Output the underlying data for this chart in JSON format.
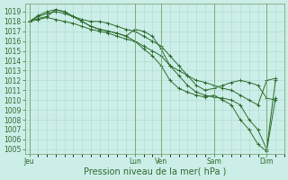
{
  "background_color": "#cceee8",
  "grid_color": "#aad8d0",
  "line_color": "#2d6b2d",
  "marker_color": "#2d6b2d",
  "xlabel_text": "Pression niveau de la mer( hPa )",
  "ylim": [
    1004.5,
    1019.8
  ],
  "yticks": [
    1005,
    1006,
    1007,
    1008,
    1009,
    1010,
    1011,
    1012,
    1013,
    1014,
    1015,
    1016,
    1017,
    1018,
    1019
  ],
  "xtick_labels": [
    "Jeu",
    "Lun",
    "Ven",
    "Sam",
    "Dim"
  ],
  "xtick_positions": [
    0,
    12,
    15,
    21,
    27
  ],
  "xlim": [
    -0.5,
    29
  ],
  "num_xgrid": 29,
  "series": [
    [
      1018.0,
      1018.5,
      1018.8,
      1019.0,
      1018.8,
      1018.5,
      1018.2,
      1018.0,
      1018.0,
      1017.8,
      1017.5,
      1017.2,
      1017.0,
      1016.5,
      1016.0,
      1015.5,
      1014.5,
      1013.5,
      1012.5,
      1011.5,
      1011.0,
      1011.2,
      1011.5,
      1011.8,
      1012.0,
      1011.8,
      1011.5,
      1010.2,
      1010.0
    ],
    [
      1018.0,
      1018.6,
      1019.0,
      1019.2,
      1019.0,
      1018.5,
      1018.0,
      1017.5,
      1017.2,
      1017.0,
      1016.8,
      1016.5,
      1016.0,
      1015.2,
      1014.5,
      1013.5,
      1012.0,
      1011.2,
      1010.8,
      1010.5,
      1010.3,
      1010.5,
      1010.0,
      1009.5,
      1008.0,
      1007.0,
      1005.5,
      1004.8,
      1010.2
    ],
    [
      1018.0,
      1018.3,
      1018.5,
      1019.2,
      1019.0,
      1018.5,
      1018.0,
      1017.5,
      1017.2,
      1017.0,
      1016.8,
      1016.5,
      1017.2,
      1017.0,
      1016.5,
      1015.2,
      1013.5,
      1012.5,
      1011.5,
      1010.8,
      1010.5,
      1010.3,
      1010.2,
      1010.0,
      1009.5,
      1008.0,
      1007.0,
      1005.0,
      1012.0
    ],
    [
      1018.0,
      1018.2,
      1018.4,
      1018.2,
      1018.0,
      1017.8,
      1017.5,
      1017.2,
      1017.0,
      1016.8,
      1016.5,
      1016.2,
      1016.0,
      1015.5,
      1015.0,
      1014.5,
      1013.5,
      1013.0,
      1012.5,
      1012.0,
      1011.8,
      1011.5,
      1011.2,
      1011.0,
      1010.5,
      1010.0,
      1009.5,
      1012.0,
      1012.2
    ]
  ],
  "vline_positions": [
    0,
    12,
    15,
    21,
    27
  ],
  "vline_color": "#7aaa7a",
  "tick_color": "#2d6b2d",
  "tick_fontsize": 5.5,
  "xlabel_fontsize": 7.0,
  "figsize": [
    3.2,
    2.0
  ],
  "dpi": 100
}
